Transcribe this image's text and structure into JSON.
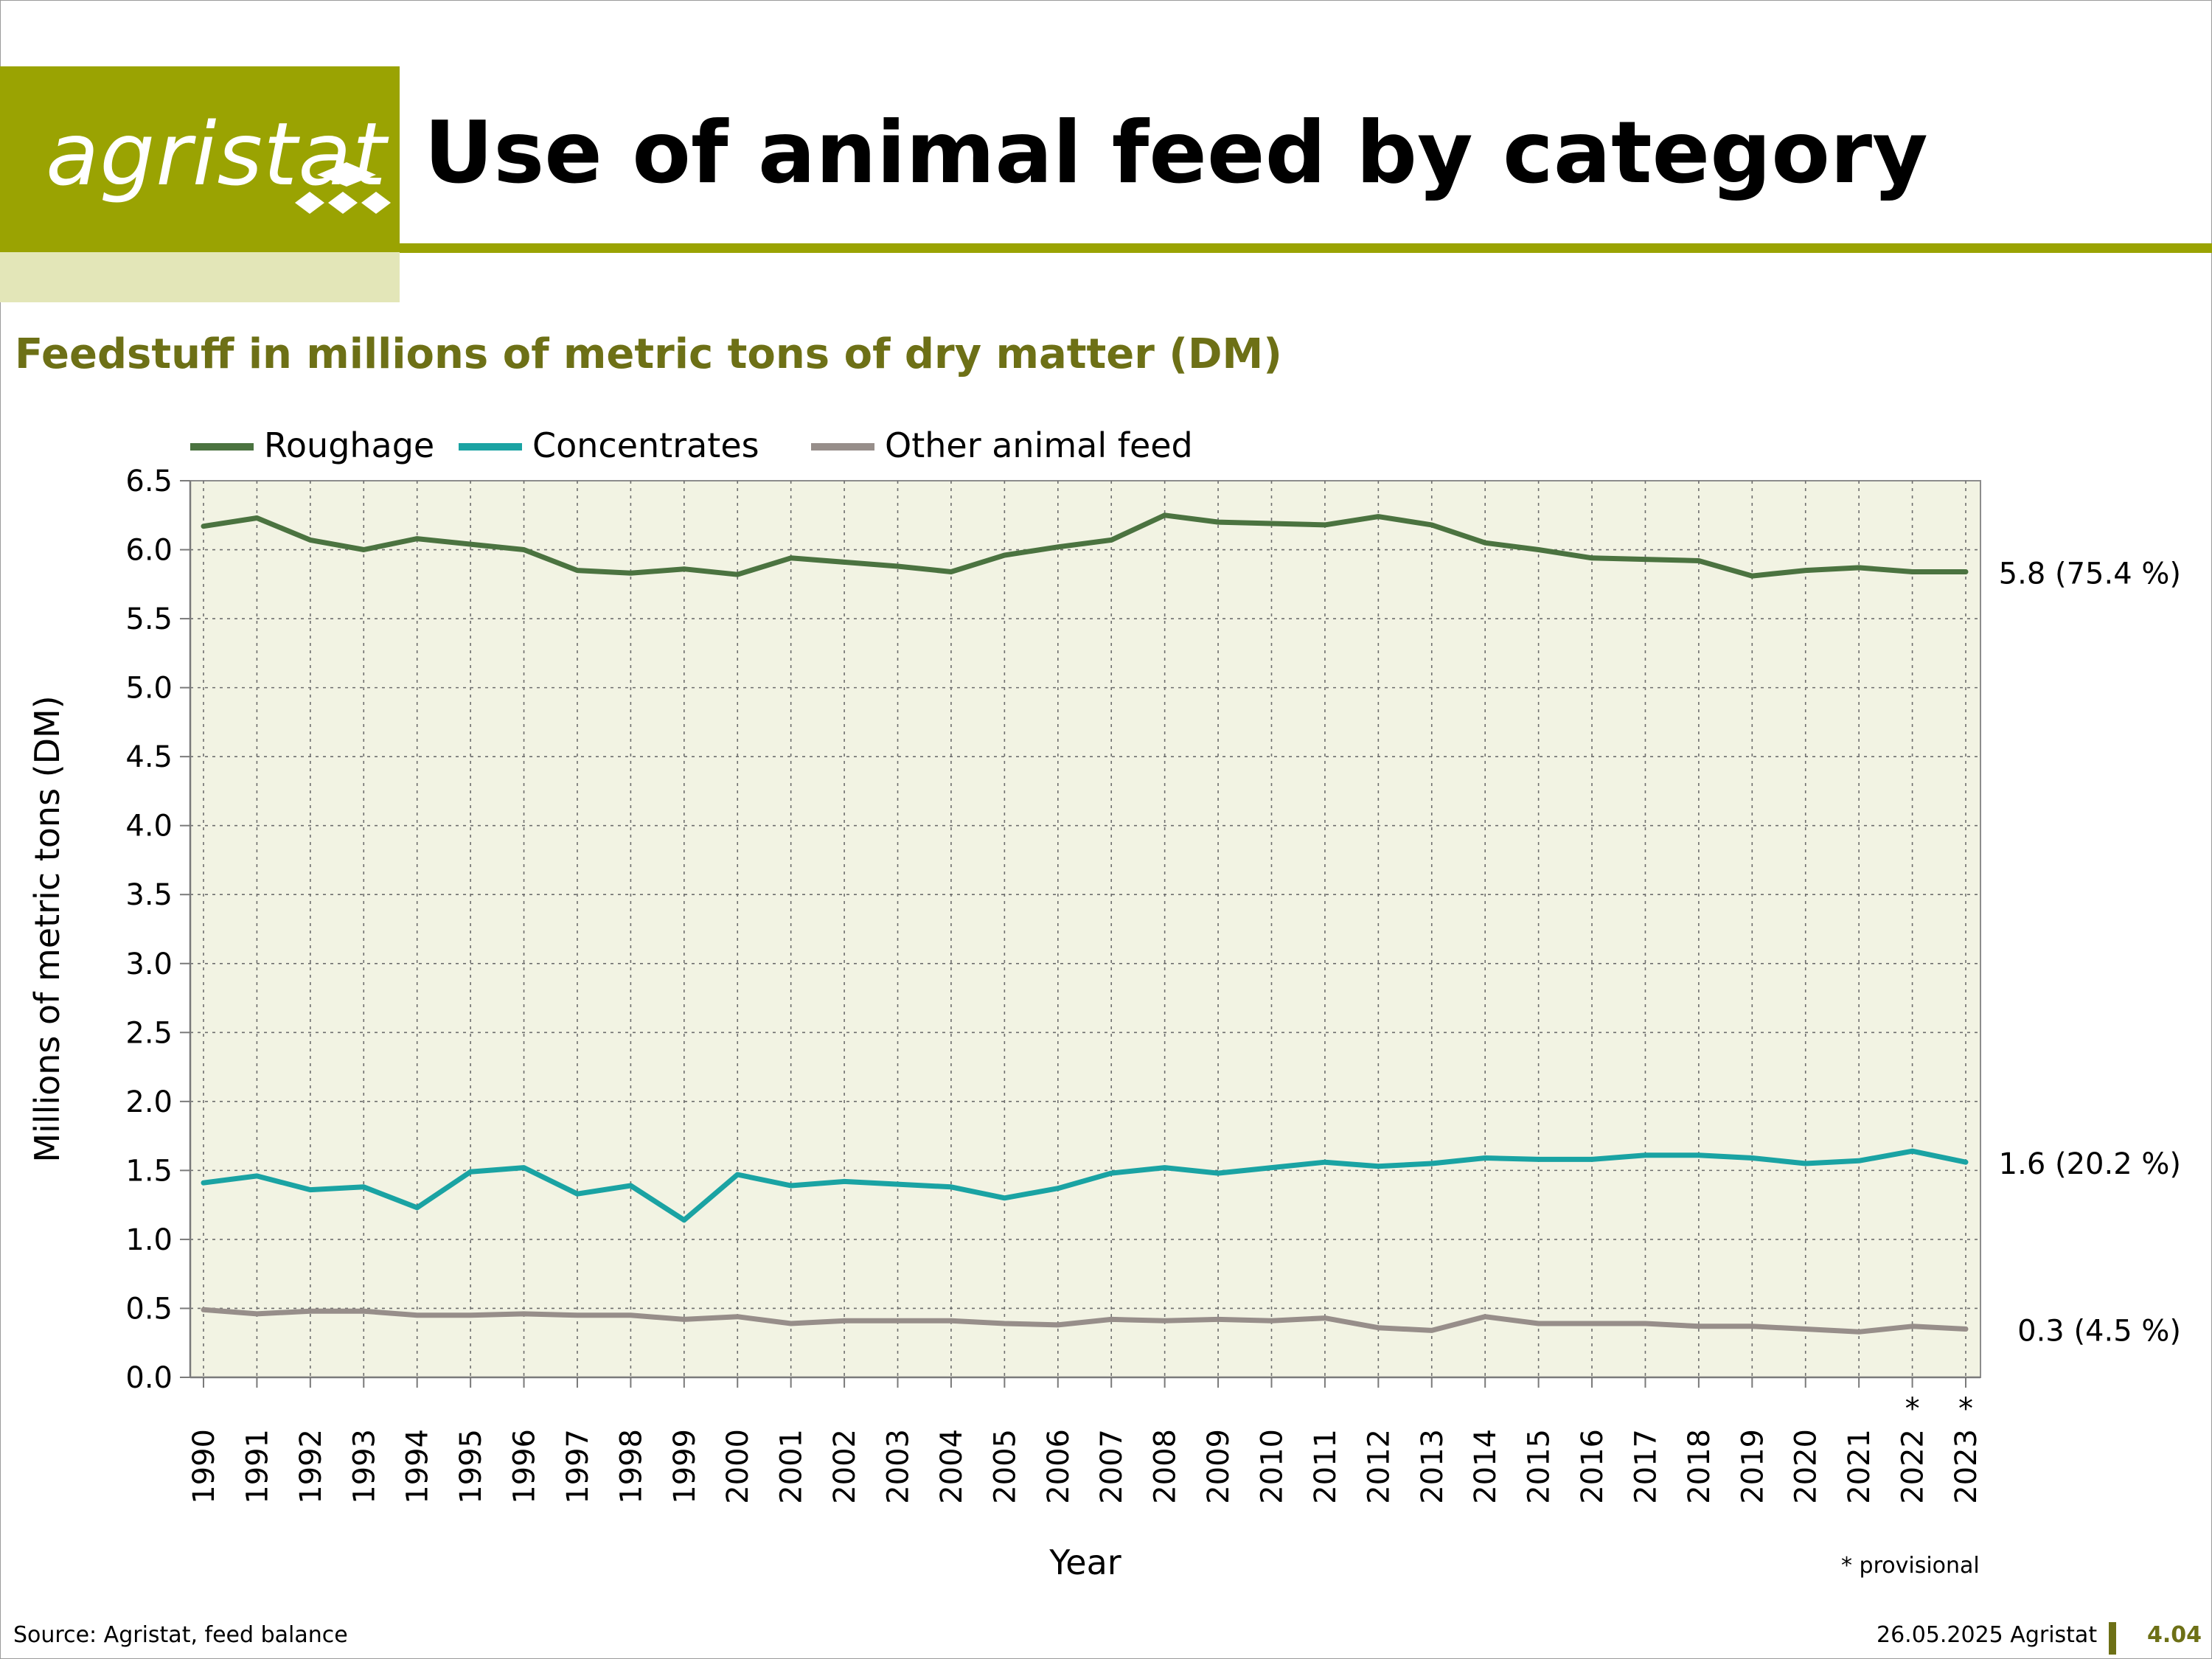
{
  "header": {
    "logo_text": "agristat",
    "title": "Use of animal feed by category",
    "subtitle": "Feedstuff in millions of metric tons of dry matter (DM)"
  },
  "colors": {
    "brand": "#9aa302",
    "brand_light": "#e3e6b8",
    "subtitle": "#6d7016",
    "plot_bg": "#f2f3e3"
  },
  "chart_data": {
    "type": "line",
    "title": "Feedstuff in millions of metric tons of dry matter (DM)",
    "xlabel": "Year",
    "ylabel": "Millions of metric tons (DM)",
    "ylim": [
      0,
      6.5
    ],
    "yticks": [
      "0.0",
      "0.5",
      "1.0",
      "1.5",
      "2.0",
      "2.5",
      "3.0",
      "3.5",
      "4.0",
      "4.5",
      "5.0",
      "5.5",
      "6.0",
      "6.5"
    ],
    "grid": true,
    "legend_position": "top-left",
    "categories": [
      "1990",
      "1991",
      "1992",
      "1993",
      "1994",
      "1995",
      "1996",
      "1997",
      "1998",
      "1999",
      "2000",
      "2001",
      "2002",
      "2003",
      "2004",
      "2005",
      "2006",
      "2007",
      "2008",
      "2009",
      "2010",
      "2011",
      "2012",
      "2013",
      "2014",
      "2015",
      "2016",
      "2017",
      "2018",
      "2019",
      "2020",
      "2021",
      "2022",
      "2023"
    ],
    "category_marks": [
      "",
      "",
      "",
      "",
      "",
      "",
      "",
      "",
      "",
      "",
      "",
      "",
      "",
      "",
      "",
      "",
      "",
      "",
      "",
      "",
      "",
      "",
      "",
      "",
      "",
      "",
      "",
      "",
      "",
      "",
      "",
      "",
      "*",
      "*"
    ],
    "series": [
      {
        "name": "Roughage",
        "color": "#4b7340",
        "end_label": "5.8 (75.4 %)",
        "values": [
          6.17,
          6.23,
          6.07,
          6.0,
          6.08,
          6.04,
          6.0,
          5.85,
          5.83,
          5.86,
          5.82,
          5.94,
          5.91,
          5.88,
          5.84,
          5.96,
          6.02,
          6.07,
          6.25,
          6.2,
          6.19,
          6.18,
          6.24,
          6.18,
          6.05,
          6.0,
          5.94,
          5.93,
          5.92,
          5.81,
          5.85,
          5.87,
          5.84,
          5.84
        ]
      },
      {
        "name": "Concentrates",
        "color": "#1aa3a3",
        "end_label": "1.6 (20.2 %)",
        "values": [
          1.41,
          1.46,
          1.36,
          1.38,
          1.23,
          1.49,
          1.52,
          1.33,
          1.39,
          1.14,
          1.47,
          1.39,
          1.42,
          1.4,
          1.38,
          1.3,
          1.37,
          1.48,
          1.52,
          1.48,
          1.52,
          1.56,
          1.53,
          1.55,
          1.59,
          1.58,
          1.58,
          1.61,
          1.61,
          1.59,
          1.55,
          1.57,
          1.64,
          1.56
        ]
      },
      {
        "name": "Other animal feed",
        "color": "#978e8a",
        "end_label": "0.3 (4.5 %)",
        "values": [
          0.49,
          0.46,
          0.48,
          0.48,
          0.45,
          0.45,
          0.46,
          0.45,
          0.45,
          0.42,
          0.44,
          0.39,
          0.41,
          0.41,
          0.41,
          0.39,
          0.38,
          0.42,
          0.41,
          0.42,
          0.41,
          0.43,
          0.36,
          0.34,
          0.44,
          0.39,
          0.39,
          0.39,
          0.37,
          0.37,
          0.35,
          0.33,
          0.37,
          0.35
        ]
      }
    ]
  },
  "footnote": "* provisional",
  "footer": {
    "source": "Source: Agristat, feed balance",
    "date": "26.05.2025 Agristat",
    "page": "4.04"
  }
}
